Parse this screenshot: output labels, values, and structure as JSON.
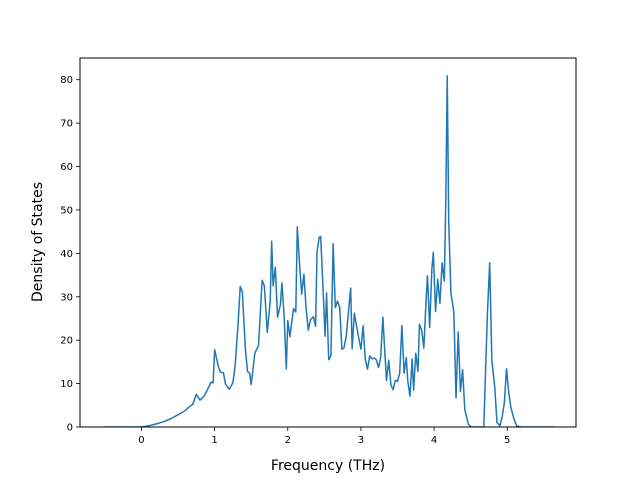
{
  "chart_data": {
    "type": "line",
    "title": "",
    "xlabel": "Frequency (THz)",
    "ylabel": "Density of States",
    "xlim": [
      -0.84,
      5.94
    ],
    "ylim": [
      0,
      85
    ],
    "xticks": [
      0,
      1,
      2,
      3,
      4,
      5
    ],
    "yticks": [
      0,
      10,
      20,
      30,
      40,
      50,
      60,
      70,
      80
    ],
    "grid": false,
    "line_color": "#1f77b4",
    "series": [
      {
        "points": [
          [
            -0.52,
            0
          ],
          [
            0.0,
            0
          ],
          [
            0.1,
            0.3
          ],
          [
            0.2,
            0.7
          ],
          [
            0.3,
            1.2
          ],
          [
            0.4,
            1.9
          ],
          [
            0.5,
            2.8
          ],
          [
            0.6,
            3.8
          ],
          [
            0.65,
            4.6
          ],
          [
            0.7,
            5.2
          ],
          [
            0.75,
            7.5
          ],
          [
            0.8,
            6.2
          ],
          [
            0.85,
            7.0
          ],
          [
            0.9,
            8.5
          ],
          [
            0.95,
            10.3
          ],
          [
            0.98,
            10.2
          ],
          [
            1.0,
            17.8
          ],
          [
            1.05,
            14.0
          ],
          [
            1.08,
            12.6
          ],
          [
            1.12,
            12.5
          ],
          [
            1.15,
            9.8
          ],
          [
            1.2,
            8.7
          ],
          [
            1.25,
            10.2
          ],
          [
            1.28,
            14.0
          ],
          [
            1.32,
            23.5
          ],
          [
            1.35,
            32.4
          ],
          [
            1.38,
            31.0
          ],
          [
            1.42,
            18.0
          ],
          [
            1.45,
            12.8
          ],
          [
            1.48,
            12.3
          ],
          [
            1.5,
            9.8
          ],
          [
            1.55,
            17.0
          ],
          [
            1.6,
            18.8
          ],
          [
            1.65,
            33.8
          ],
          [
            1.68,
            32.5
          ],
          [
            1.72,
            21.8
          ],
          [
            1.76,
            29.0
          ],
          [
            1.78,
            42.8
          ],
          [
            1.8,
            32.5
          ],
          [
            1.83,
            36.8
          ],
          [
            1.86,
            25.3
          ],
          [
            1.9,
            28.2
          ],
          [
            1.92,
            33.2
          ],
          [
            1.95,
            25.6
          ],
          [
            1.98,
            13.4
          ],
          [
            2.0,
            24.5
          ],
          [
            2.03,
            20.8
          ],
          [
            2.06,
            24.9
          ],
          [
            2.08,
            27.3
          ],
          [
            2.11,
            26.5
          ],
          [
            2.13,
            46.1
          ],
          [
            2.16,
            37.9
          ],
          [
            2.19,
            30.6
          ],
          [
            2.22,
            35.2
          ],
          [
            2.25,
            27.5
          ],
          [
            2.28,
            22.3
          ],
          [
            2.31,
            24.7
          ],
          [
            2.35,
            25.4
          ],
          [
            2.38,
            23.2
          ],
          [
            2.4,
            40.3
          ],
          [
            2.43,
            43.7
          ],
          [
            2.45,
            43.9
          ],
          [
            2.48,
            32.7
          ],
          [
            2.51,
            20.9
          ],
          [
            2.53,
            30.9
          ],
          [
            2.56,
            15.5
          ],
          [
            2.59,
            16.4
          ],
          [
            2.62,
            42.2
          ],
          [
            2.65,
            27.5
          ],
          [
            2.68,
            29.0
          ],
          [
            2.71,
            27.5
          ],
          [
            2.74,
            17.9
          ],
          [
            2.77,
            18.3
          ],
          [
            2.8,
            21.0
          ],
          [
            2.83,
            26.6
          ],
          [
            2.86,
            32.0
          ],
          [
            2.88,
            18.0
          ],
          [
            2.91,
            26.2
          ],
          [
            2.94,
            23.3
          ],
          [
            2.97,
            20.5
          ],
          [
            3.0,
            17.9
          ],
          [
            3.03,
            23.3
          ],
          [
            3.06,
            15.6
          ],
          [
            3.09,
            13.3
          ],
          [
            3.12,
            16.4
          ],
          [
            3.15,
            15.7
          ],
          [
            3.18,
            15.9
          ],
          [
            3.21,
            15.5
          ],
          [
            3.24,
            13.7
          ],
          [
            3.27,
            16.0
          ],
          [
            3.3,
            25.3
          ],
          [
            3.32,
            19.2
          ],
          [
            3.35,
            10.7
          ],
          [
            3.38,
            15.4
          ],
          [
            3.41,
            9.7
          ],
          [
            3.44,
            8.6
          ],
          [
            3.47,
            10.8
          ],
          [
            3.5,
            10.5
          ],
          [
            3.53,
            12.4
          ],
          [
            3.56,
            23.4
          ],
          [
            3.59,
            12.4
          ],
          [
            3.62,
            16.0
          ],
          [
            3.64,
            10.7
          ],
          [
            3.67,
            7.1
          ],
          [
            3.7,
            15.7
          ],
          [
            3.72,
            8.5
          ],
          [
            3.75,
            17.0
          ],
          [
            3.78,
            12.8
          ],
          [
            3.8,
            23.7
          ],
          [
            3.83,
            22.3
          ],
          [
            3.86,
            18.2
          ],
          [
            3.89,
            29.0
          ],
          [
            3.91,
            34.8
          ],
          [
            3.94,
            22.9
          ],
          [
            3.97,
            36.5
          ],
          [
            3.99,
            40.2
          ],
          [
            4.02,
            26.6
          ],
          [
            4.05,
            34.0
          ],
          [
            4.08,
            28.5
          ],
          [
            4.11,
            37.8
          ],
          [
            4.14,
            33.6
          ],
          [
            4.16,
            52.0
          ],
          [
            4.18,
            80.9
          ],
          [
            4.2,
            47.5
          ],
          [
            4.23,
            30.9
          ],
          [
            4.27,
            26.5
          ],
          [
            4.3,
            6.7
          ],
          [
            4.33,
            21.9
          ],
          [
            4.36,
            8.2
          ],
          [
            4.39,
            13.2
          ],
          [
            4.42,
            4.0
          ],
          [
            4.47,
            0.6
          ],
          [
            4.51,
            0
          ],
          [
            4.68,
            0
          ],
          [
            4.7,
            11.0
          ],
          [
            4.73,
            26.5
          ],
          [
            4.76,
            37.8
          ],
          [
            4.79,
            15.3
          ],
          [
            4.83,
            9.0
          ],
          [
            4.86,
            1.0
          ],
          [
            4.9,
            0.3
          ],
          [
            4.93,
            2.3
          ],
          [
            4.96,
            5.5
          ],
          [
            4.99,
            13.4
          ],
          [
            5.02,
            8.0
          ],
          [
            5.05,
            4.5
          ],
          [
            5.09,
            2.0
          ],
          [
            5.13,
            0.2
          ],
          [
            5.2,
            0
          ],
          [
            5.63,
            0
          ]
        ]
      }
    ]
  }
}
